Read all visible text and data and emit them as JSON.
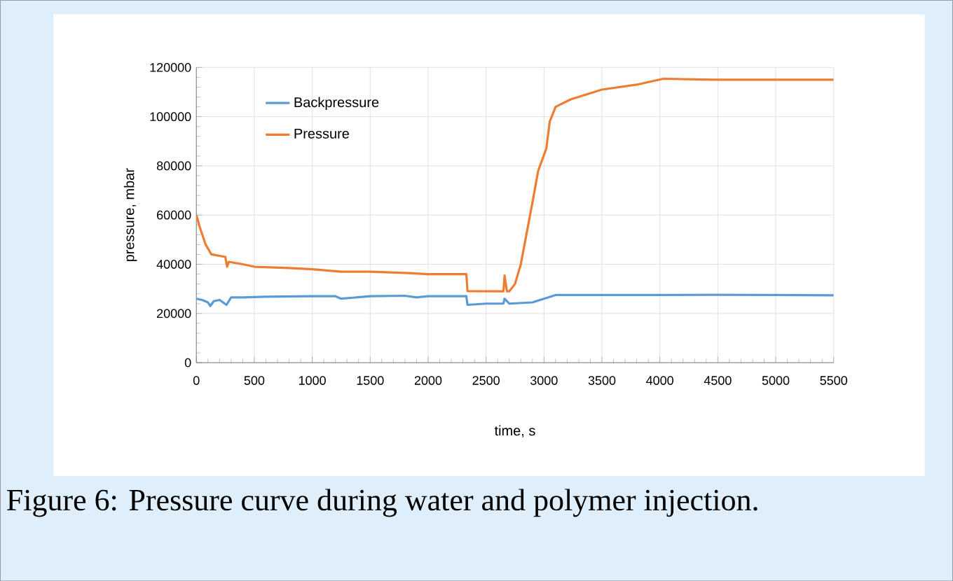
{
  "chart_data": {
    "type": "line",
    "xlabel": "time, s",
    "ylabel": "pressure, mbar",
    "annotations": [
      "Figure 6: Pressure curve during water and polymer injection."
    ],
    "xlim": [
      0,
      5500
    ],
    "ylim": [
      0,
      120000
    ],
    "xticks": [
      0,
      500,
      1000,
      1500,
      2000,
      2500,
      3000,
      3500,
      4000,
      4500,
      5000,
      5500
    ],
    "yticks": [
      0,
      20000,
      40000,
      60000,
      80000,
      100000,
      120000
    ],
    "grid": true,
    "legend": "top left",
    "marker": "none",
    "line_style": "solid",
    "series": [
      {
        "name": "Backpressure",
        "color": "#5b9bd5",
        "x": [
          0,
          50,
          100,
          120,
          150,
          200,
          260,
          300,
          400,
          600,
          1000,
          1200,
          1250,
          1500,
          1800,
          1900,
          2000,
          2300,
          2330,
          2340,
          2500,
          2650,
          2660,
          2700,
          2900,
          3000,
          3100,
          3300,
          3500,
          4000,
          4500,
          5000,
          5500
        ],
        "values": [
          26000,
          25500,
          24500,
          23000,
          25000,
          25500,
          23500,
          26500,
          26500,
          26800,
          27000,
          27000,
          26000,
          27000,
          27200,
          26500,
          27000,
          27000,
          27000,
          23500,
          24000,
          24000,
          26000,
          24000,
          24500,
          26000,
          27500,
          27500,
          27500,
          27500,
          27600,
          27500,
          27400
        ]
      },
      {
        "name": "Pressure",
        "color": "#ed7d31",
        "x": [
          0,
          30,
          80,
          130,
          250,
          265,
          280,
          400,
          500,
          800,
          1000,
          1250,
          1500,
          1800,
          2000,
          2300,
          2330,
          2340,
          2650,
          2660,
          2680,
          2700,
          2750,
          2800,
          2900,
          2950,
          3020,
          3050,
          3100,
          3230,
          3500,
          3800,
          4030,
          4500,
          5500
        ],
        "values": [
          60000,
          55000,
          48000,
          44000,
          43000,
          39000,
          41000,
          40000,
          39000,
          38500,
          38000,
          37000,
          37000,
          36500,
          36000,
          36000,
          36000,
          29100,
          29000,
          35400,
          29000,
          29000,
          32000,
          40000,
          65000,
          78000,
          87000,
          98000,
          104000,
          107000,
          111000,
          113000,
          115400,
          115000,
          115000
        ]
      }
    ]
  }
}
